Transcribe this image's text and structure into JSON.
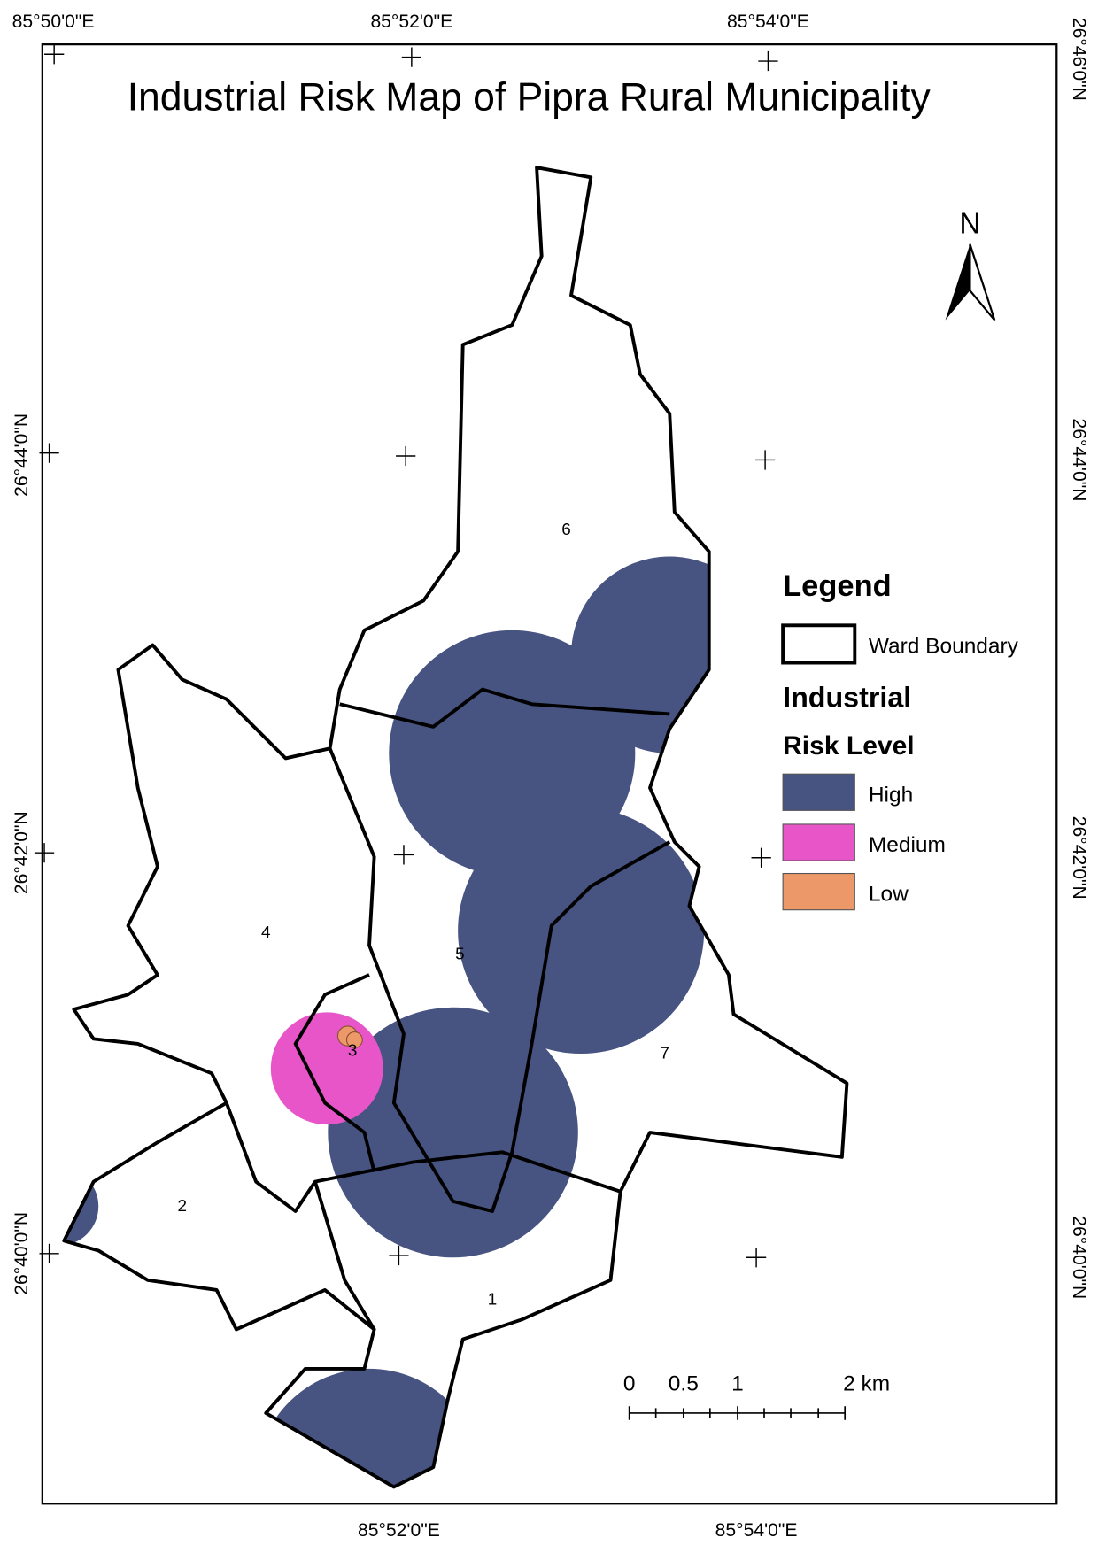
{
  "title": "Industrial Risk Map of Pipra Rural Municipality",
  "graticule": {
    "top": [
      "85°50'0\"E",
      "85°52'0\"E",
      "85°54'0\"E"
    ],
    "bottom": [
      "85°52'0\"E",
      "85°54'0\"E"
    ],
    "left": [
      "26°44'0\"N",
      "26°42'0\"N",
      "26°40'0\"N"
    ],
    "right": [
      "26°46'0\"N",
      "26°44'0\"N",
      "26°42'0\"N",
      "26°40'0\"N"
    ]
  },
  "legend": {
    "title": "Legend",
    "boundary": "Ward Boundary",
    "risk_title": [
      "Industrial",
      "Risk Level"
    ],
    "items": [
      "High",
      "Medium",
      "Low"
    ]
  },
  "north": "N",
  "scale_bar": [
    "0",
    "0.5",
    "1",
    "2 km"
  ],
  "wards": [
    "1",
    "2",
    "3",
    "4",
    "5",
    "6",
    "7"
  ]
}
